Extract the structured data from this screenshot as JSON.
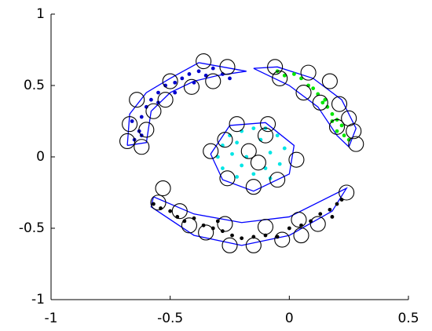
{
  "chart_data": {
    "type": "scatter",
    "xlim": [
      -1,
      0.5
    ],
    "ylim": [
      -1,
      1
    ],
    "xticks": [
      -1,
      -0.5,
      0,
      0.5
    ],
    "yticks": [
      -1,
      -0.5,
      0,
      0.5,
      1
    ],
    "series": [
      {
        "mode": "line",
        "color": "#0000ff",
        "x": [
          -0.68,
          -0.67,
          -0.6,
          -0.5,
          -0.38,
          -0.18,
          -0.3,
          -0.4,
          -0.5,
          -0.58,
          -0.6,
          -0.68
        ],
        "y": [
          0.08,
          0.3,
          0.45,
          0.55,
          0.66,
          0.6,
          0.57,
          0.53,
          0.45,
          0.32,
          0.1,
          0.08
        ]
      },
      {
        "mode": "line",
        "color": "#0000ff",
        "x": [
          -0.15,
          -0.05,
          0.1,
          0.22,
          0.28,
          0.25,
          0.2,
          0.12,
          0,
          -0.15
        ],
        "y": [
          0.62,
          0.63,
          0.55,
          0.4,
          0.2,
          0.07,
          0.15,
          0.35,
          0.5,
          0.62
        ]
      },
      {
        "mode": "line",
        "color": "#0000ff",
        "x": [
          -0.25,
          -0.1,
          0.02,
          0,
          -0.15,
          -0.28,
          -0.33,
          -0.25
        ],
        "y": [
          0.22,
          0.24,
          0.08,
          -0.12,
          -0.24,
          -0.16,
          0.02,
          0.22
        ]
      },
      {
        "mode": "line",
        "color": "#0000ff",
        "x": [
          -0.57,
          -0.4,
          -0.2,
          0,
          0.24,
          0.18,
          0,
          -0.2,
          -0.4,
          -0.58,
          -0.57
        ],
        "y": [
          -0.28,
          -0.4,
          -0.46,
          -0.42,
          -0.22,
          -0.38,
          -0.55,
          -0.62,
          -0.55,
          -0.35,
          -0.28
        ]
      },
      {
        "mode": "markers",
        "color": "#0000cc",
        "x": [
          -0.65,
          -0.63,
          -0.66,
          -0.62,
          -0.6,
          -0.58,
          -0.55,
          -0.52,
          -0.48,
          -0.45,
          -0.42,
          -0.38,
          -0.35,
          -0.32,
          -0.28,
          -0.25,
          -0.48,
          -0.55,
          -0.62,
          -0.4
        ],
        "y": [
          0.12,
          0.18,
          0.25,
          0.28,
          0.35,
          0.4,
          0.45,
          0.5,
          0.52,
          0.55,
          0.58,
          0.6,
          0.57,
          0.62,
          0.58,
          0.55,
          0.45,
          0.38,
          0.15,
          0.52
        ]
      },
      {
        "mode": "markers",
        "color": "#00e600",
        "x": [
          -0.05,
          -0.02,
          0.02,
          0.05,
          0.08,
          0.1,
          0.12,
          0.15,
          0.16,
          0.18,
          0.2,
          0.22,
          0.23,
          0.25,
          0.2,
          0.18,
          0.14
        ],
        "y": [
          0.6,
          0.57,
          0.58,
          0.55,
          0.5,
          0.48,
          0.44,
          0.4,
          0.35,
          0.3,
          0.26,
          0.22,
          0.15,
          0.12,
          0.18,
          0.25,
          0.38
        ]
      },
      {
        "mode": "markers",
        "color": "#00e5e5",
        "x": [
          -0.25,
          -0.2,
          -0.15,
          -0.1,
          -0.05,
          -0.28,
          -0.22,
          -0.12,
          -0.02,
          -0.3,
          -0.24,
          -0.18,
          -0.08,
          -0.28,
          -0.2,
          -0.1,
          -0.04,
          -0.22,
          -0.15,
          -0.08
        ],
        "y": [
          0.15,
          0.18,
          0.2,
          0.2,
          0.15,
          0.08,
          0.1,
          0.12,
          0.06,
          0,
          0.02,
          0,
          0.03,
          -0.08,
          -0.06,
          -0.08,
          -0.05,
          -0.14,
          -0.12,
          -0.15
        ]
      },
      {
        "mode": "markers",
        "color": "#000000",
        "x": [
          -0.57,
          -0.54,
          -0.5,
          -0.47,
          -0.44,
          -0.4,
          -0.36,
          -0.32,
          -0.28,
          -0.24,
          -0.2,
          -0.15,
          -0.1,
          -0.05,
          0,
          0.05,
          0.09,
          0.13,
          0.17,
          0.2,
          0.22,
          0.18,
          -0.3
        ],
        "y": [
          -0.33,
          -0.36,
          -0.38,
          -0.42,
          -0.45,
          -0.43,
          -0.48,
          -0.5,
          -0.52,
          -0.55,
          -0.57,
          -0.56,
          -0.55,
          -0.56,
          -0.5,
          -0.48,
          -0.45,
          -0.4,
          -0.37,
          -0.33,
          -0.3,
          -0.42,
          -0.45
        ]
      },
      {
        "mode": "circles",
        "color": "#000000",
        "x": [
          -0.36,
          -0.26,
          -0.5,
          -0.41,
          -0.32,
          -0.64,
          -0.52,
          -0.57,
          -0.67,
          -0.6,
          -0.68,
          -0.62,
          -0.06,
          0.08,
          -0.04,
          0.17,
          0.06,
          0.13,
          0.21,
          0.25,
          0.2,
          0.27,
          0.28,
          -0.22,
          -0.09,
          -0.27,
          -0.1,
          -0.33,
          -0.17,
          0.03,
          -0.13,
          -0.26,
          -0.05,
          -0.15,
          -0.53,
          -0.55,
          0.24,
          -0.46,
          -0.42,
          -0.35,
          -0.27,
          -0.1,
          0.04,
          0.12,
          0.05,
          -0.25,
          -0.15,
          -0.03
        ],
        "y": [
          0.67,
          0.63,
          0.53,
          0.49,
          0.53,
          0.4,
          0.4,
          0.32,
          0.23,
          0.19,
          0.11,
          0.07,
          0.63,
          0.59,
          0.55,
          0.53,
          0.45,
          0.38,
          0.37,
          0.27,
          0.21,
          0.18,
          0.09,
          0.23,
          0.23,
          0.12,
          0.15,
          0.04,
          0.04,
          -0.02,
          -0.04,
          -0.15,
          -0.16,
          -0.21,
          -0.22,
          -0.32,
          -0.25,
          -0.38,
          -0.48,
          -0.53,
          -0.47,
          -0.49,
          -0.44,
          -0.47,
          -0.55,
          -0.62,
          -0.62,
          -0.58
        ]
      }
    ]
  }
}
